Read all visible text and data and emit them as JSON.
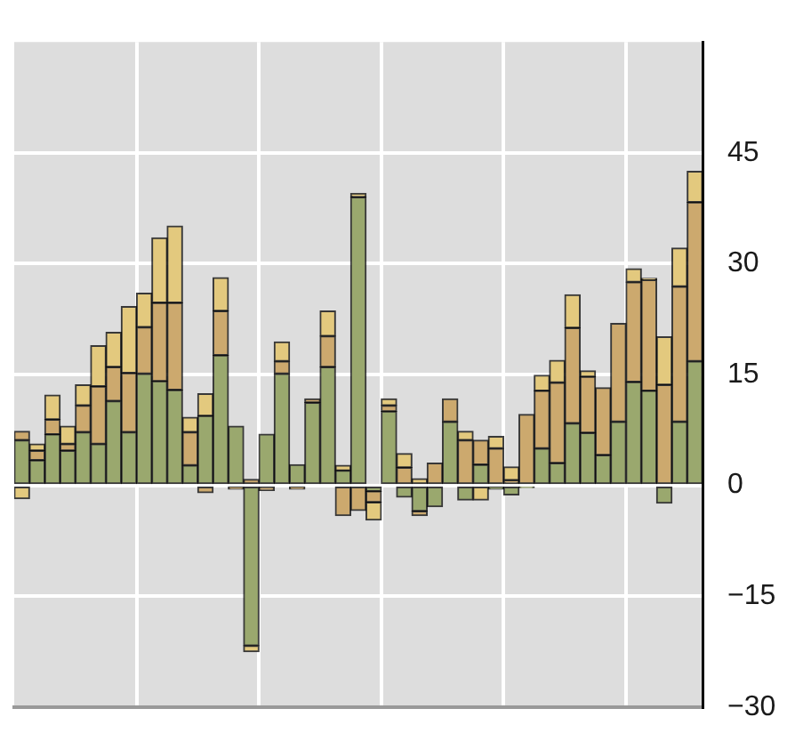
{
  "chart_data": {
    "type": "bar",
    "stacked": true,
    "grid": true,
    "legend": false,
    "categories": [
      null,
      null,
      null,
      null,
      null,
      null,
      null,
      null,
      null,
      null,
      null,
      null,
      null,
      null,
      null,
      null,
      null,
      null,
      null,
      null,
      null,
      null,
      null,
      null,
      null,
      null,
      null,
      null,
      null,
      null,
      null,
      null,
      null,
      null,
      null,
      null,
      null,
      null,
      null,
      null,
      null,
      null,
      null,
      null,
      null
    ],
    "ylim": [
      -30,
      60
    ],
    "yticks": [
      {
        "value": -30,
        "label": "−30"
      },
      {
        "value": -15,
        "label": "−15"
      },
      0,
      15,
      30,
      45
    ],
    "series": [
      {
        "color": "#9aa86e",
        "values": [
          6.1,
          3.4,
          6.9,
          4.7,
          7.2,
          5.6,
          11.4,
          7.2,
          15.1,
          14.1,
          12.9,
          2.7,
          9.4,
          17.6,
          8.0,
          -21.7,
          6.9,
          15.1,
          2.8,
          11.2,
          16.0,
          2.0,
          39.0,
          -0.8,
          10.0,
          -1.6,
          -3.5,
          -2.9,
          8.6,
          -2.0,
          2.8,
          -0.5,
          -1.3,
          -0.3,
          5.0,
          3.0,
          8.4,
          7.1,
          4.1,
          8.6,
          14.0,
          12.8,
          -2.4,
          8.6,
          16.8
        ]
      },
      {
        "color": "#cca96e",
        "values": [
          1.2,
          1.3,
          2.0,
          0.9,
          3.6,
          7.8,
          4.6,
          8.0,
          6.3,
          10.6,
          11.8,
          4.5,
          -1.0,
          6.0,
          -0.5,
          0.8,
          -0.7,
          1.7,
          -0.5,
          0.5,
          4.2,
          -4.1,
          -3.4,
          -1.5,
          0.8,
          2.4,
          -0.6,
          3.0,
          3.1,
          6.1,
          3.3,
          5.0,
          0.7,
          9.6,
          7.8,
          10.9,
          12.9,
          7.6,
          9.1,
          13.3,
          13.5,
          15.0,
          13.6,
          18.3,
          21.5
        ]
      },
      {
        "color": "#e3c97e",
        "values": [
          -1.8,
          0.9,
          3.3,
          2.4,
          2.8,
          5.5,
          4.7,
          9.0,
          4.6,
          8.8,
          10.4,
          2.0,
          3.0,
          4.5,
          null,
          -0.8,
          null,
          2.6,
          null,
          null,
          3.4,
          0.7,
          0.5,
          -2.4,
          0.9,
          1.9,
          0.9,
          null,
          null,
          1.2,
          -2.0,
          1.6,
          1.8,
          null,
          2.1,
          3.0,
          4.5,
          0.8,
          null,
          null,
          1.8,
          0.2,
          6.5,
          5.2,
          4.2
        ]
      }
    ]
  }
}
